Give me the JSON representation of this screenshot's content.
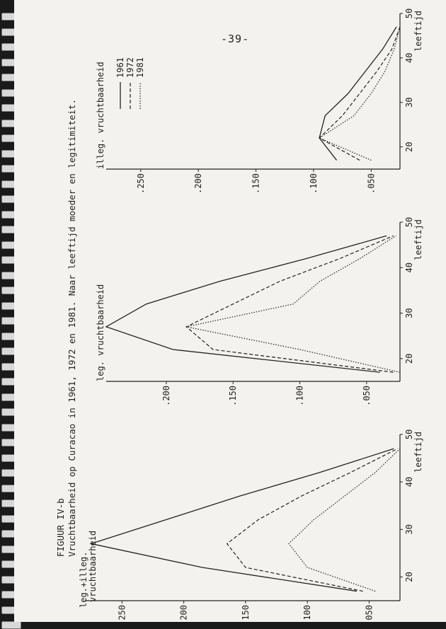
{
  "page_number": "-39-",
  "figure": {
    "id": "FIGUUR IV-b",
    "title": "Vruchtbaarheid op Curacao in 1961, 1972 en 1981. Naar leeftijd moeder en legitimiteit."
  },
  "legend": {
    "entries": [
      "1961",
      "1972",
      "1981"
    ],
    "placement": "upper right of third panel"
  },
  "chart_data": [
    {
      "type": "line",
      "panel_label": [
        "leg.+illeg.",
        "vruchtbaarheid"
      ],
      "xlabel": "leeftijd",
      "x_ticks": [
        20,
        30,
        40,
        50
      ],
      "y_ticks": [
        ".050",
        ".100",
        ".150",
        ".200",
        ".250"
      ],
      "ylim": [
        0.025,
        0.28
      ],
      "xlim": [
        15,
        50
      ],
      "x": [
        17,
        22,
        27,
        32,
        37,
        42,
        47
      ],
      "series": [
        {
          "name": "1961",
          "values": [
            0.06,
            0.185,
            0.275,
            0.215,
            0.155,
            0.09,
            0.03
          ]
        },
        {
          "name": "1972",
          "values": [
            0.055,
            0.15,
            0.165,
            0.14,
            0.105,
            0.065,
            0.027
          ]
        },
        {
          "name": "1981",
          "values": [
            0.045,
            0.1,
            0.115,
            0.095,
            0.07,
            0.045,
            0.025
          ]
        }
      ]
    },
    {
      "type": "line",
      "panel_label": [
        "leg. vruchtbaarheid"
      ],
      "xlabel": "leeftijd",
      "x_ticks": [
        20,
        30,
        40,
        50
      ],
      "y_ticks": [
        ".050",
        ".100",
        ".150",
        ".200"
      ],
      "ylim": [
        0.025,
        0.245
      ],
      "xlim": [
        15,
        50
      ],
      "x": [
        17,
        22,
        27,
        32,
        37,
        42,
        47
      ],
      "series": [
        {
          "name": "1961",
          "values": [
            0.04,
            0.195,
            0.245,
            0.215,
            0.16,
            0.095,
            0.035
          ]
        },
        {
          "name": "1972",
          "values": [
            0.03,
            0.165,
            0.185,
            0.15,
            0.115,
            0.07,
            0.03
          ]
        },
        {
          "name": "1981",
          "values": [
            0.025,
            0.1,
            0.185,
            0.105,
            0.085,
            0.055,
            0.028
          ]
        }
      ]
    },
    {
      "type": "line",
      "panel_label": [
        "illeg. vruchtbaarheid"
      ],
      "xlabel": "leeftijd",
      "x_ticks": [
        20,
        30,
        40,
        50
      ],
      "y_ticks": [
        ".050",
        ".100",
        ".150",
        ".200",
        ".250"
      ],
      "ylim": [
        0.025,
        0.28
      ],
      "xlim": [
        15,
        50
      ],
      "x": [
        17,
        22,
        27,
        32,
        37,
        42,
        47
      ],
      "series": [
        {
          "name": "1961",
          "values": [
            0.08,
            0.095,
            0.09,
            0.07,
            0.055,
            0.04,
            0.028
          ]
        },
        {
          "name": "1972",
          "values": [
            0.06,
            0.095,
            0.075,
            0.06,
            0.045,
            0.032,
            0.025
          ]
        },
        {
          "name": "1981",
          "values": [
            0.05,
            0.095,
            0.065,
            0.05,
            0.038,
            0.03,
            0.025
          ]
        }
      ]
    }
  ]
}
